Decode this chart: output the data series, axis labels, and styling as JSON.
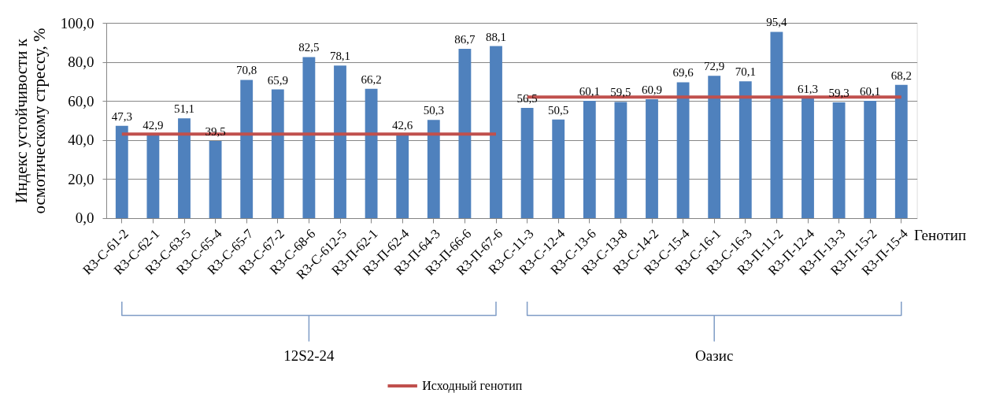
{
  "chart_data": {
    "type": "bar",
    "ylabel": "Индекс устойчивости к осмотическому стрессу, %",
    "xlabel": "Генотип",
    "categories": [
      "R3-С-61-2",
      "R3-С-62-1",
      "R3-С-63-5",
      "R3-С-65-4",
      "R3-С-65-7",
      "R3-С-67-2",
      "R3-С-68-6",
      "R3-С-612-5",
      "R3-П-62-1",
      "R3-П-62-4",
      "R3-П-64-3",
      "R3-П-66-6",
      "R3-П-67-6",
      "R3-С-11-3",
      "R3-С-12-4",
      "R3-С-13-6",
      "R3-С-13-8",
      "R3-С-14-2",
      "R3-С-15-4",
      "R3-С-16-1",
      "R3-С-16-3",
      "R3-П-11-2",
      "R3-П-12-4",
      "R3-П-13-3",
      "R3-П-15-2",
      "R3-П-15-4"
    ],
    "series": [
      {
        "color": "#4f81bd",
        "values": [
          47.3,
          42.9,
          51.1,
          39.5,
          70.8,
          65.9,
          82.5,
          78.1,
          66.2,
          42.6,
          50.3,
          86.7,
          88.1,
          56.5,
          50.5,
          60.1,
          59.5,
          60.9,
          69.6,
          72.9,
          70.1,
          95.4,
          61.3,
          59.3,
          60.1,
          68.2
        ],
        "value_labels": [
          "47,3",
          "42,9",
          "51,1",
          "39,5",
          "70,8",
          "65,9",
          "82,5",
          "78,1",
          "66,2",
          "42,6",
          "50,3",
          "86,7",
          "88,1",
          "56,5",
          "50,5",
          "60,1",
          "59,5",
          "60,9",
          "69,6",
          "72,9",
          "70,1",
          "95,4",
          "61,3",
          "59,3",
          "60,1",
          "68,2"
        ]
      },
      {
        "type": "line",
        "name": "Исходный генотип",
        "color": "#c0504d",
        "values": [
          43,
          43,
          43,
          43,
          43,
          43,
          43,
          43,
          43,
          43,
          43,
          43,
          43,
          null,
          null,
          null,
          null,
          null,
          null,
          null,
          null,
          null,
          null,
          null,
          null,
          null
        ]
      },
      {
        "type": "line",
        "color": "#c0504d",
        "values": [
          null,
          null,
          null,
          null,
          null,
          null,
          null,
          null,
          null,
          null,
          null,
          null,
          null,
          62,
          62,
          62,
          62,
          62,
          62,
          62,
          62,
          62,
          62,
          62,
          62,
          62
        ]
      }
    ],
    "ylim": [
      0,
      100
    ],
    "yticks": [
      {
        "value": 0,
        "label": "0,0"
      },
      {
        "value": 20,
        "label": "20,0"
      },
      {
        "value": 40,
        "label": "40,0"
      },
      {
        "value": 60,
        "label": "60,0"
      },
      {
        "value": 80,
        "label": "80,0"
      },
      {
        "value": 100,
        "label": "100,0"
      }
    ],
    "grid": "y",
    "legend": "bottom",
    "annotations": [
      "12S2-24",
      "Оазис"
    ]
  }
}
